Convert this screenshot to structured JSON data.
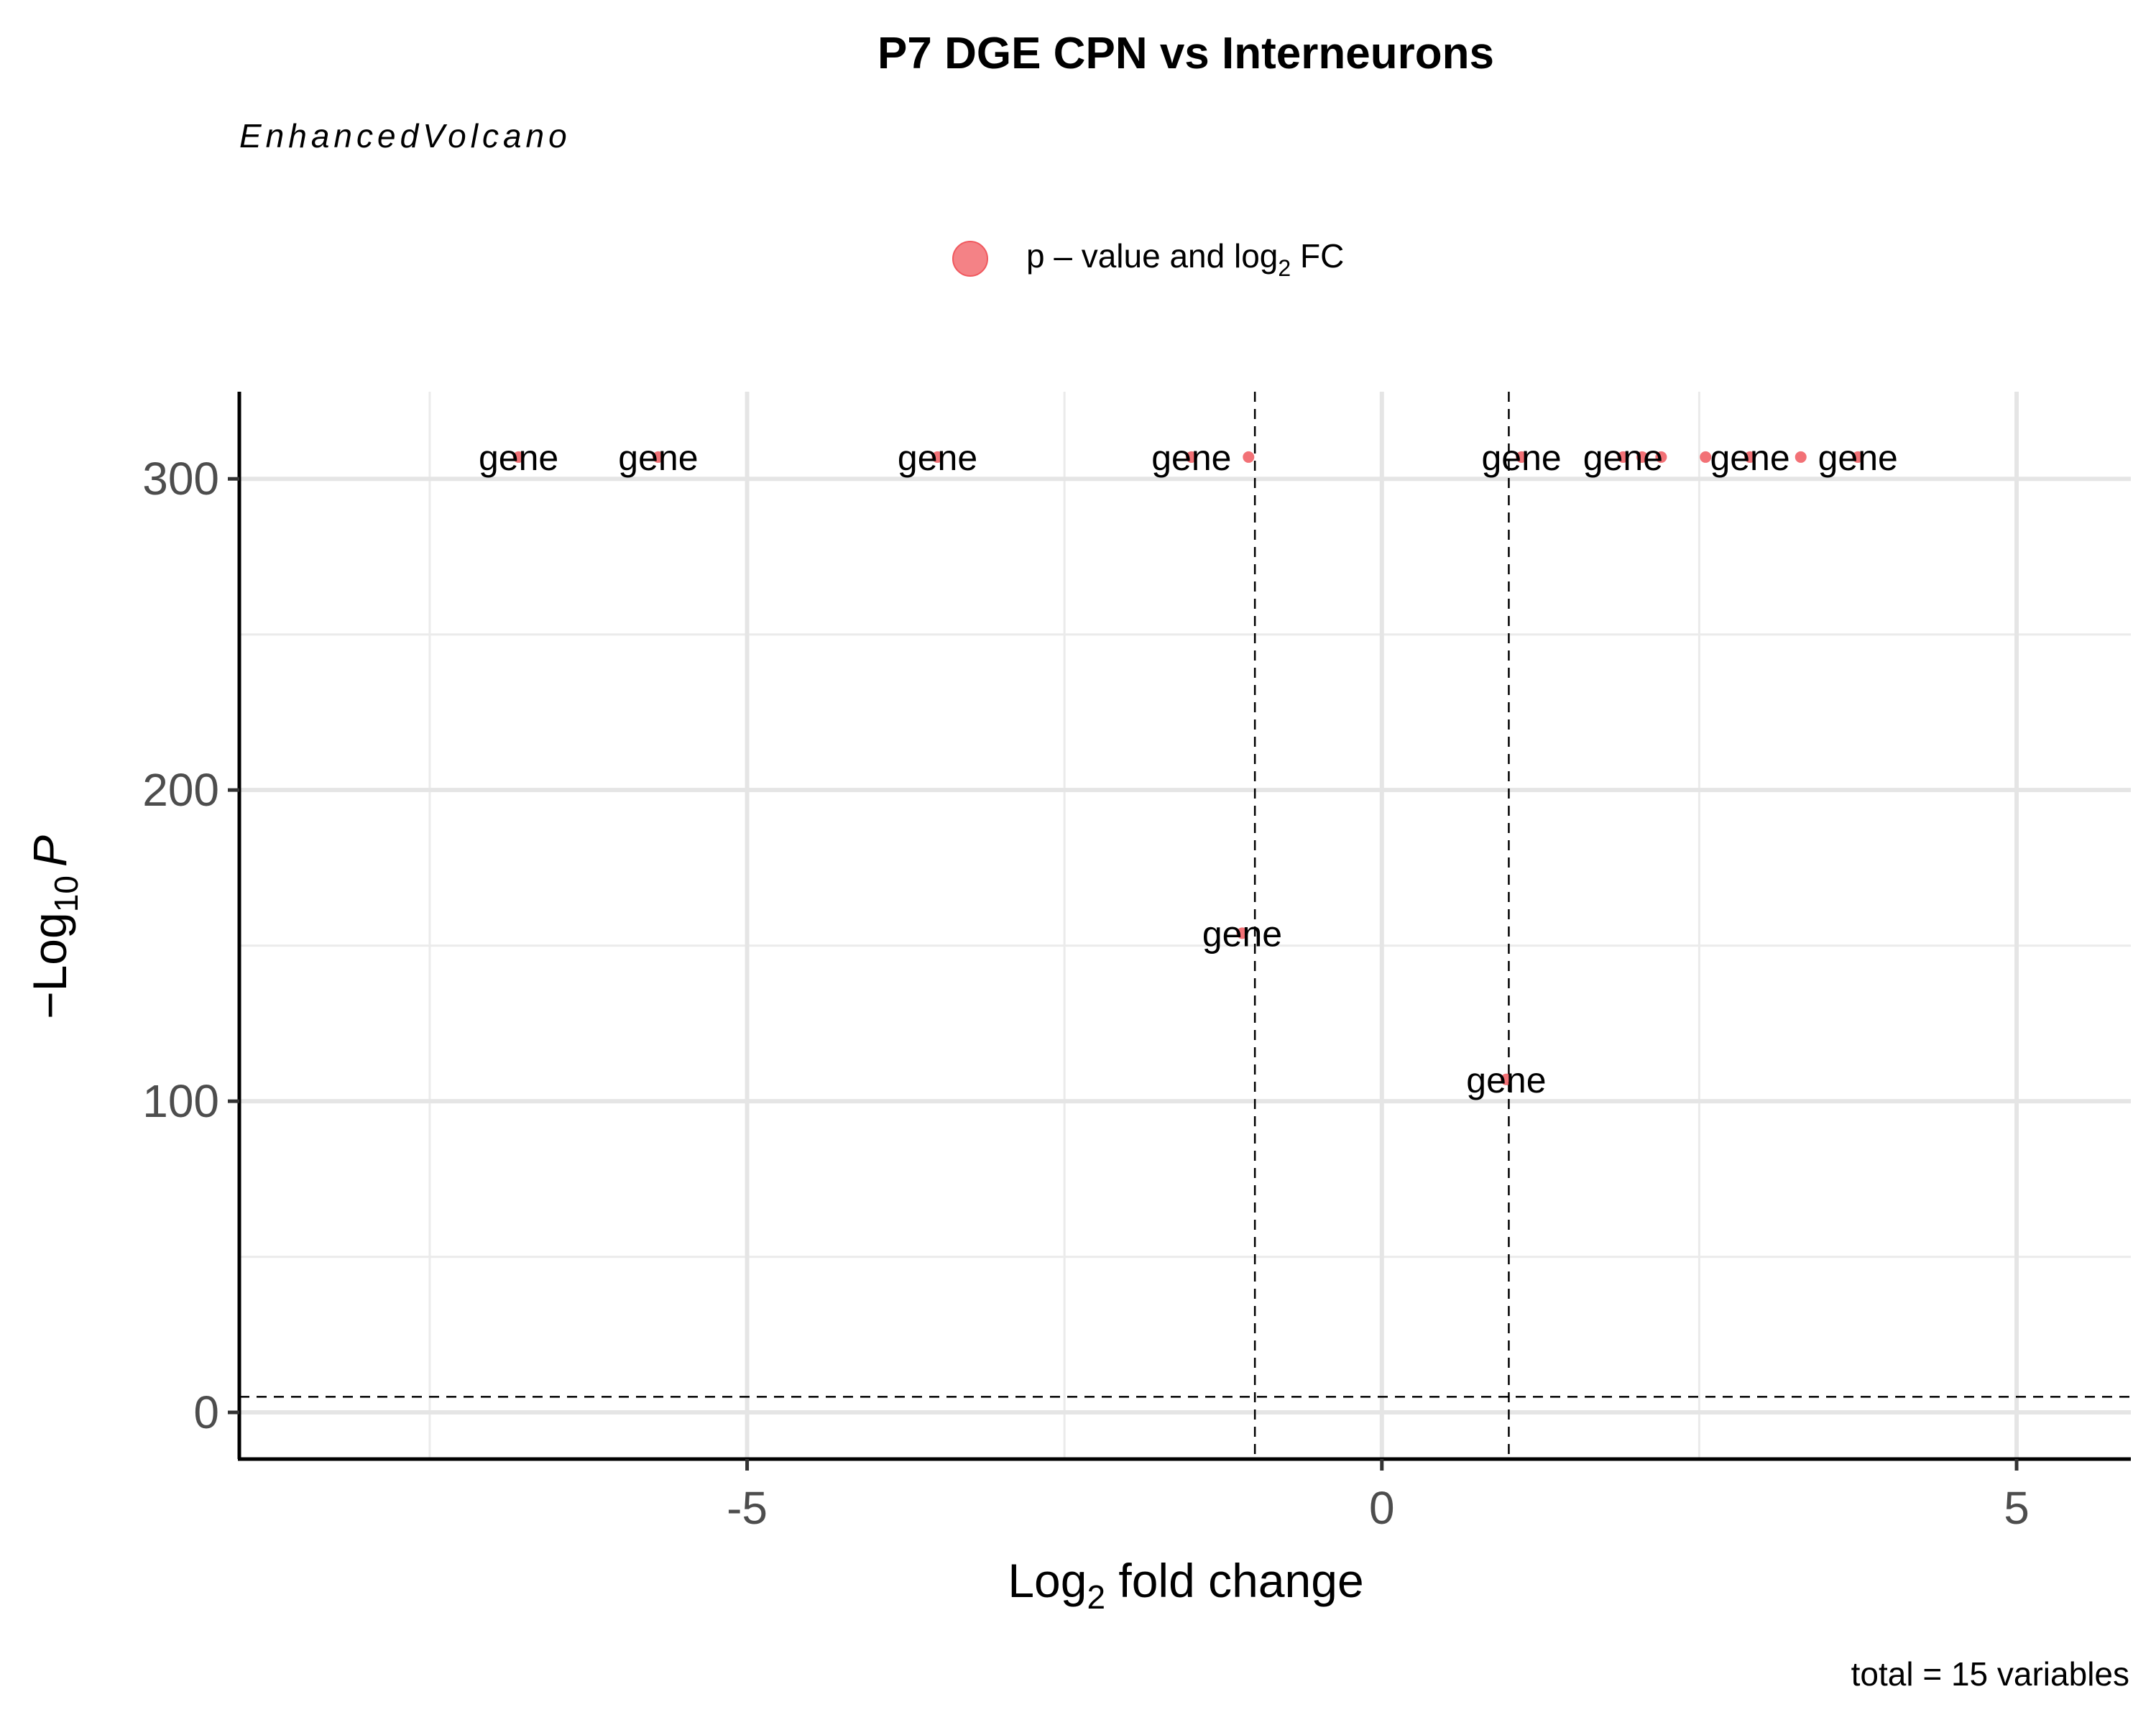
{
  "chart_data": {
    "type": "scatter",
    "title": "P7 DGE CPN vs Interneurons",
    "subtitle": "EnhancedVolcano",
    "caption": "total = 15 variables",
    "xlabel": {
      "base": "Log",
      "sub": "2",
      "rest": " fold change"
    },
    "ylabel": {
      "prefix": "−Log",
      "sub": "10",
      "italic": "P"
    },
    "legend": {
      "position": "top",
      "label": {
        "pre": "p – value and log",
        "sub": "2",
        "post": " FC"
      }
    },
    "xlim": [
      -9,
      5.9
    ],
    "ylim": [
      -15,
      328
    ],
    "x_ticks": [
      -5,
      0,
      5
    ],
    "x_tick_labels": [
      "-5",
      "0",
      "5"
    ],
    "y_ticks": [
      0,
      100,
      200,
      300
    ],
    "y_tick_labels": [
      "0",
      "100",
      "200",
      "300"
    ],
    "x_minor_gridlines": [
      -7.5,
      -2.5,
      2.5
    ],
    "y_minor_gridlines": [
      50,
      150,
      250
    ],
    "grid": true,
    "cutoffs": {
      "log2fc": [
        -1,
        1
      ],
      "neglog10p": 5
    },
    "point_color": "#f0585e",
    "points": [
      {
        "x": -6.8,
        "y": 307,
        "label": "gene"
      },
      {
        "x": -5.7,
        "y": 307,
        "label": "gene"
      },
      {
        "x": -3.5,
        "y": 307,
        "label": "gene"
      },
      {
        "x": -1.5,
        "y": 307,
        "label": "gene"
      },
      {
        "x": -1.05,
        "y": 307,
        "label": ""
      },
      {
        "x": 1.1,
        "y": 307,
        "label": "gene"
      },
      {
        "x": 1.9,
        "y": 307,
        "label": "gene"
      },
      {
        "x": 2.05,
        "y": 307,
        "label": ""
      },
      {
        "x": 2.2,
        "y": 307,
        "label": ""
      },
      {
        "x": 2.55,
        "y": 307,
        "label": ""
      },
      {
        "x": 2.9,
        "y": 307,
        "label": "gene"
      },
      {
        "x": 3.3,
        "y": 307,
        "label": ""
      },
      {
        "x": 3.75,
        "y": 307,
        "label": "gene"
      },
      {
        "x": -1.1,
        "y": 154,
        "label": "gene"
      },
      {
        "x": 0.98,
        "y": 107,
        "label": "gene"
      }
    ]
  }
}
